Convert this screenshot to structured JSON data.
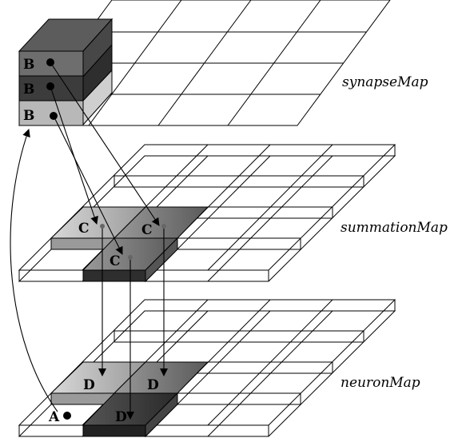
{
  "maps": {
    "synapse": "synapseMap",
    "summation": "summationMap",
    "neuron": "neuronMap"
  },
  "labels": {
    "b1": "B",
    "b2": "B",
    "b3": "B",
    "c1": "C",
    "c2": "C",
    "c3": "C",
    "d1": "D",
    "d2": "D",
    "d3": "D",
    "a": "A"
  },
  "colors": {
    "block_top": "#5a5a5a",
    "block_right": "#3a3a3a",
    "block_row1": "#6e6e6e",
    "block_row2": "#3c3c3c",
    "block_row3": "#b8b8b8",
    "cell_light": "#bdbdbd",
    "cell_dark": "#3a3a3a"
  }
}
